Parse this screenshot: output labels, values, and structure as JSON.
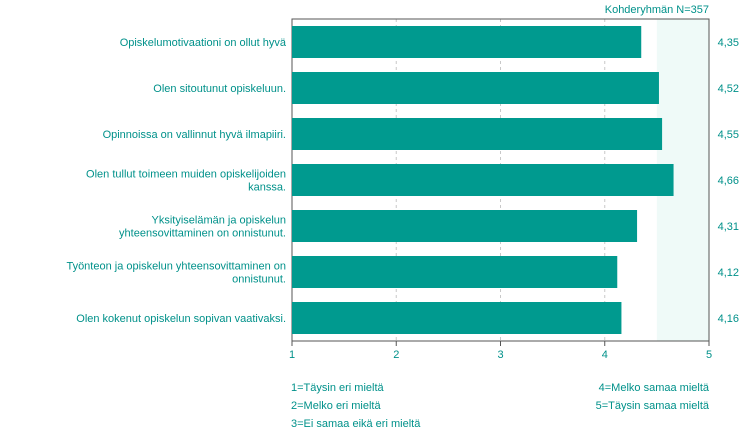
{
  "chart_data": {
    "type": "bar",
    "orientation": "horizontal",
    "header_note": "Kohderyhmän N=357",
    "categories": [
      [
        "Opiskelumotivaationi on ollut hyvä"
      ],
      [
        "Olen sitoutunut opiskeluun."
      ],
      [
        "Opinnoissa on vallinnut hyvä ilmapiiri."
      ],
      [
        "Olen tullut toimeen muiden opiskelijoiden",
        "kanssa."
      ],
      [
        "Yksityiselämän ja opiskelun",
        "yhteensovittaminen on onnistunut."
      ],
      [
        "Työnteon ja opiskelun yhteensovittaminen on",
        "onnistunut."
      ],
      [
        "Olen kokenut opiskelun sopivan vaativaksi."
      ]
    ],
    "values": [
      4.35,
      4.52,
      4.55,
      4.66,
      4.31,
      4.12,
      4.16
    ],
    "value_labels": [
      "4,35",
      "4,52",
      "4,55",
      "4,66",
      "4,31",
      "4,12",
      "4,16"
    ],
    "xlim": [
      1,
      5
    ],
    "xticks": [
      "1",
      "2",
      "3",
      "4",
      "5"
    ],
    "shaded_band": [
      4.5,
      5
    ],
    "grid": true,
    "scale_legend_left": [
      "1=Täysin eri mieltä",
      "2=Melko eri mieltä",
      "3=Ei samaa eikä eri mieltä"
    ],
    "scale_legend_right": [
      "4=Melko samaa mieltä",
      "5=Täysin samaa mieltä"
    ],
    "colors": {
      "bar": "#009a8f",
      "text": "#00918a",
      "band": "#effaf8",
      "grid": "#c8c8c8",
      "frame": "#555555"
    }
  }
}
